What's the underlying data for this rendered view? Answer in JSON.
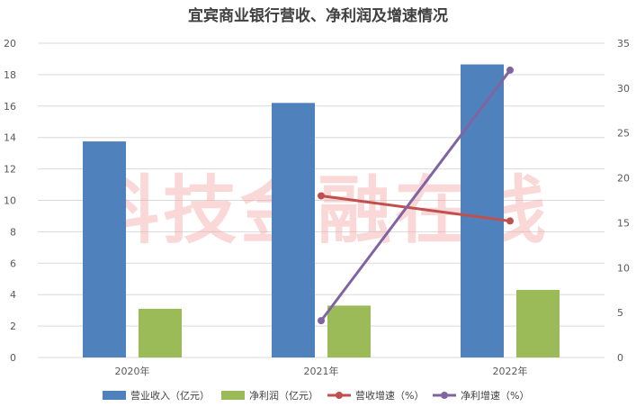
{
  "watermark": "科技金融在线",
  "chart_data": {
    "type": "bar",
    "title": "宜宾商业银行营收、净利润及增速情况",
    "categories": [
      "2020年",
      "2021年",
      "2022年"
    ],
    "y_left": {
      "min": 0,
      "max": 20,
      "step": 2
    },
    "y_right": {
      "min": 0,
      "max": 35,
      "step": 5
    },
    "grid": true,
    "legend_position": "bottom",
    "bar_series": [
      {
        "name": "营业收入（亿元）",
        "color": "#4f81bd",
        "axis": "left",
        "values": [
          13.75,
          16.2,
          18.65
        ]
      },
      {
        "name": "净利润（亿元）",
        "color": "#9bbb59",
        "axis": "left",
        "values": [
          3.1,
          3.3,
          4.3
        ]
      }
    ],
    "line_series": [
      {
        "name": "营收增速（%）",
        "color": "#c0504d",
        "axis": "right",
        "values": [
          null,
          18.0,
          15.2
        ]
      },
      {
        "name": "净利增速（%）",
        "color": "#8064a2",
        "axis": "right",
        "values": [
          null,
          4.1,
          32.0
        ]
      }
    ]
  }
}
